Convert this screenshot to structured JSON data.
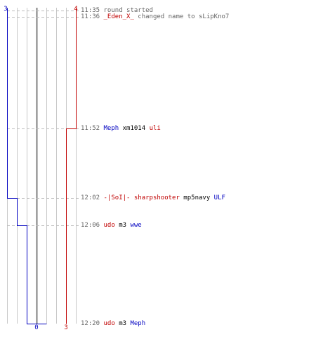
{
  "colors": {
    "blue": "#0000c0",
    "red": "#c00000",
    "text": "#000000",
    "timestamp": "#666666",
    "neutral": "#666666",
    "grid": "#c8c8c8",
    "center": "#808080",
    "dashed": "#bbbbbb"
  },
  "chart_data": {
    "type": "line",
    "description_free": true,
    "score_columns": {
      "blue": [
        3,
        2,
        1,
        0
      ],
      "red": [
        0,
        1,
        2,
        3,
        4
      ]
    },
    "series": [
      {
        "team": "blue",
        "points": [
          {
            "time": "11:35",
            "value": 3
          },
          {
            "time": "12:02",
            "value": 2
          },
          {
            "time": "12:06",
            "value": 1
          },
          {
            "time": "12:20",
            "value": 0
          }
        ]
      },
      {
        "team": "red",
        "points": [
          {
            "time": "11:35",
            "value": 4
          },
          {
            "time": "11:52",
            "value": 3
          },
          {
            "time": "12:20",
            "value": 3
          }
        ]
      }
    ],
    "top_labels": {
      "blue": "3",
      "red": "4"
    },
    "bottom_labels": {
      "blue": "0",
      "red": "3"
    }
  },
  "events": [
    {
      "time": "11:35",
      "parts": [
        {
          "text": "11:35 ",
          "color": "timestamp"
        },
        {
          "text": "round started",
          "color": "neutral"
        }
      ]
    },
    {
      "time": "11:36",
      "parts": [
        {
          "text": "11:36 ",
          "color": "timestamp"
        },
        {
          "text": "_Eden_X_",
          "color": "red"
        },
        {
          "text": " changed name to sLipKno7",
          "color": "neutral"
        }
      ]
    },
    {
      "time": "11:52",
      "parts": [
        {
          "text": "11:52 ",
          "color": "timestamp"
        },
        {
          "text": "Meph",
          "color": "blue"
        },
        {
          "text": " xm1014 ",
          "color": "text"
        },
        {
          "text": "uli",
          "color": "red"
        }
      ]
    },
    {
      "time": "12:02",
      "parts": [
        {
          "text": "12:02 ",
          "color": "timestamp"
        },
        {
          "text": "-|SoI|- sharpshooter",
          "color": "red"
        },
        {
          "text": " mp5navy ",
          "color": "text"
        },
        {
          "text": "ULF",
          "color": "blue"
        }
      ]
    },
    {
      "time": "12:06",
      "parts": [
        {
          "text": "12:06 ",
          "color": "timestamp"
        },
        {
          "text": "udo",
          "color": "red"
        },
        {
          "text": " m3 ",
          "color": "text"
        },
        {
          "text": "wwe",
          "color": "blue"
        }
      ]
    },
    {
      "time": "12:20",
      "parts": [
        {
          "text": "12:20 ",
          "color": "timestamp"
        },
        {
          "text": "udo",
          "color": "red"
        },
        {
          "text": " m3 ",
          "color": "text"
        },
        {
          "text": "Meph",
          "color": "blue"
        }
      ]
    }
  ]
}
